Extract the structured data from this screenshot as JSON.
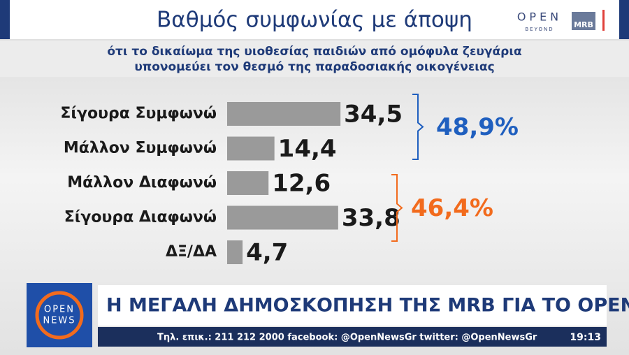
{
  "chart_data": {
    "type": "hbar",
    "title": "Βαθμός συμφωνίας με άποψη",
    "subtitle": [
      "ότι το δικαίωμα της υιοθεσίας παιδιών από ομόφυλα ζευγάρια",
      "υπονομεύει τον θεσμό της παραδοσιακής οικογένειας"
    ],
    "categories": [
      "Σίγουρα Συμφωνώ",
      "Μάλλον Συμφωνώ",
      "Μάλλον Διαφωνώ",
      "Σίγουρα Διαφωνώ",
      "ΔΞ/ΔΑ"
    ],
    "values": [
      34.5,
      14.4,
      12.6,
      33.8,
      4.7
    ],
    "value_labels": [
      "34,5",
      "14,4",
      "12,6",
      "33,8",
      "4,7"
    ],
    "color": "#9a9a9a",
    "annotations": [
      {
        "text": "48,9%",
        "color": "#1f5fbf"
      },
      {
        "text": "46,4%",
        "color": "#f26b1d"
      }
    ]
  },
  "logos": {
    "open": "OPEN",
    "beyond": "BEYOND",
    "mrb": "MRB",
    "news": [
      "OPEN",
      "NEWS"
    ]
  },
  "ticker": {
    "headline": "Η ΜΕΓΑΛΗ ΔΗΜΟΣΚΟΠΗΣΗ ΤΗΣ MRB ΓΙΑ ΤΟ OPEN",
    "contacts": "Τηλ. επικ.: 211 212 2000 facebook: @OpenNewsGr twitter: @OpenNewsGr",
    "time": "19:13"
  }
}
